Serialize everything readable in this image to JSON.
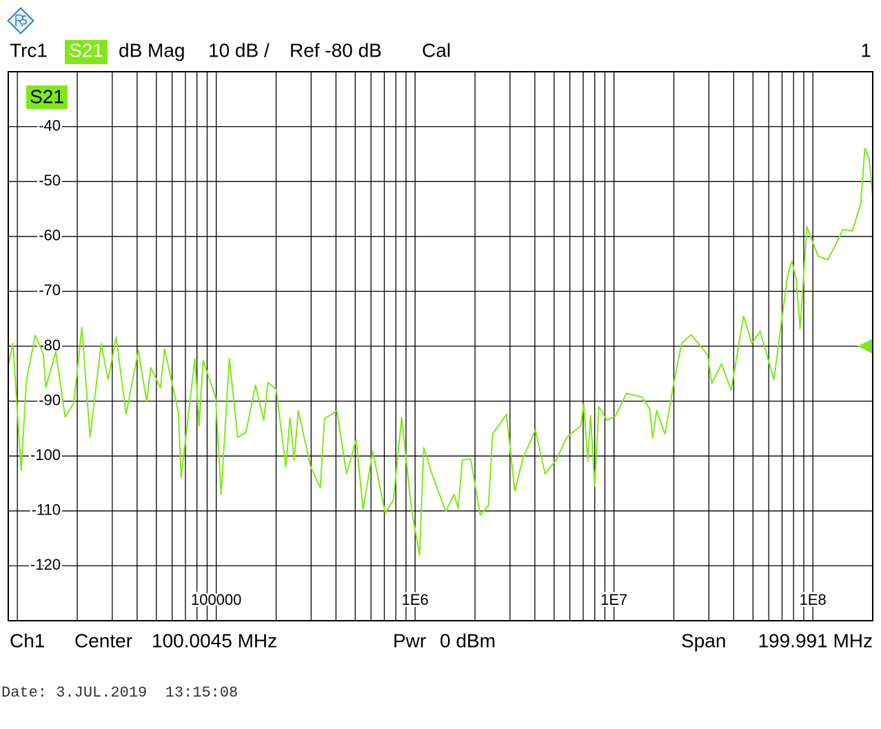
{
  "header": {
    "trace": "Trc1",
    "format": "dB Mag",
    "scale": "10 dB /",
    "reference": "Ref -80 dB",
    "cal": "Cal",
    "window": "1"
  },
  "footer": {
    "channel": "Ch1",
    "center_label": "Center",
    "center": "100.0045 MHz",
    "power_label": "Pwr",
    "power": "0 dBm",
    "span_label": "Span",
    "span": "199.991 MHz",
    "date": "Date: 3.JUL.2019  13:15:08"
  },
  "chart_data": {
    "type": "line",
    "log_x": true,
    "grid": true,
    "xlim": [
      9000,
      200000000
    ],
    "ylim": [
      -130,
      -30
    ],
    "xticks": [
      100000,
      {
        "value": 1000000,
        "label": "1E6"
      },
      {
        "value": 10000000,
        "label": "1E7"
      },
      {
        "value": 100000000,
        "label": "1E8"
      }
    ],
    "yticks": [
      -40,
      -50,
      -60,
      -70,
      -80,
      -90,
      -100,
      -110,
      -120
    ],
    "reference_level": -80,
    "x": [
      9000,
      9500,
      10450,
      11100,
      12300,
      13500,
      13900,
      15600,
      17400,
      19200,
      21100,
      23200,
      26400,
      28600,
      31400,
      35200,
      40600,
      44700,
      46900,
      52400,
      55000,
      64500,
      66600,
      78100,
      81900,
      85900,
      99200,
      105800,
      116400,
      128100,
      140900,
      157600,
      173500,
      182000,
      200300,
      223900,
      235000,
      246500,
      258500,
      298500,
      333800,
      350100,
      404400,
      452100,
      505300,
      547400,
      612100,
      707000,
      777900,
      855900,
      957200,
      1053000,
      1105000,
      1216000,
      1426000,
      1570000,
      1647000,
      1728000,
      1901000,
      2127000,
      2339000,
      2455000,
      2879000,
      3170000,
      3487000,
      4026000,
      4503000,
      5115000,
      5812000,
      6818000,
      7040000,
      7385000,
      7624000,
      7997000,
      8389000,
      9233000,
      10160000,
      11540000,
      13760000,
      15140000,
      15630000,
      16400000,
      18050000,
      19870000,
      21870000,
      24450000,
      29600000,
      31060000,
      34730000,
      38850000,
      44830000,
      49340000,
      54290000,
      63720000,
      74720000,
      78400000,
      82250000,
      86290000,
      93430000,
      106200000,
      118700000,
      130700000,
      141500000,
      158200000,
      174100000,
      182700000,
      191700000,
      200000000
    ],
    "series": [
      {
        "name": "S21",
        "color": "#80e818",
        "values": [
          -83.3,
          -79.5,
          -102.6,
          -86.4,
          -78.0,
          -81.4,
          -87.5,
          -81.0,
          -92.9,
          -90.4,
          -76.6,
          -96.6,
          -79.5,
          -86.1,
          -78.3,
          -92.4,
          -80.75,
          -90.1,
          -83.9,
          -87.6,
          -80.5,
          -92.0,
          -103.9,
          -82.25,
          -94.5,
          -82.6,
          -89.25,
          -107.0,
          -82.25,
          -96.6,
          -95.75,
          -87.1,
          -93.5,
          -86.6,
          -87.9,
          -102.0,
          -93.0,
          -100.75,
          -91.75,
          -102.0,
          -105.75,
          -93.25,
          -91.75,
          -103.25,
          -97.0,
          -109.75,
          -99.1,
          -110.4,
          -108.0,
          -93.0,
          -109.5,
          -118.0,
          -98.5,
          -103.25,
          -110.1,
          -107.0,
          -109.5,
          -100.75,
          -100.5,
          -110.75,
          -109.0,
          -96.0,
          -92.4,
          -106.4,
          -100.4,
          -95.25,
          -103.25,
          -100.75,
          -96.5,
          -94.5,
          -90.5,
          -100.9,
          -92.6,
          -105.5,
          -91.0,
          -93.5,
          -92.75,
          -88.6,
          -89.25,
          -91.4,
          -96.75,
          -91.75,
          -96.0,
          -87.25,
          -79.5,
          -77.9,
          -81.6,
          -86.75,
          -83.25,
          -88.0,
          -74.5,
          -79.5,
          -77.25,
          -86.1,
          -67.0,
          -64.5,
          -67.6,
          -76.75,
          -58.25,
          -63.6,
          -64.25,
          -61.4,
          -58.75,
          -59.0,
          -54.0,
          -43.9,
          -45.75,
          -52.6
        ]
      }
    ]
  }
}
